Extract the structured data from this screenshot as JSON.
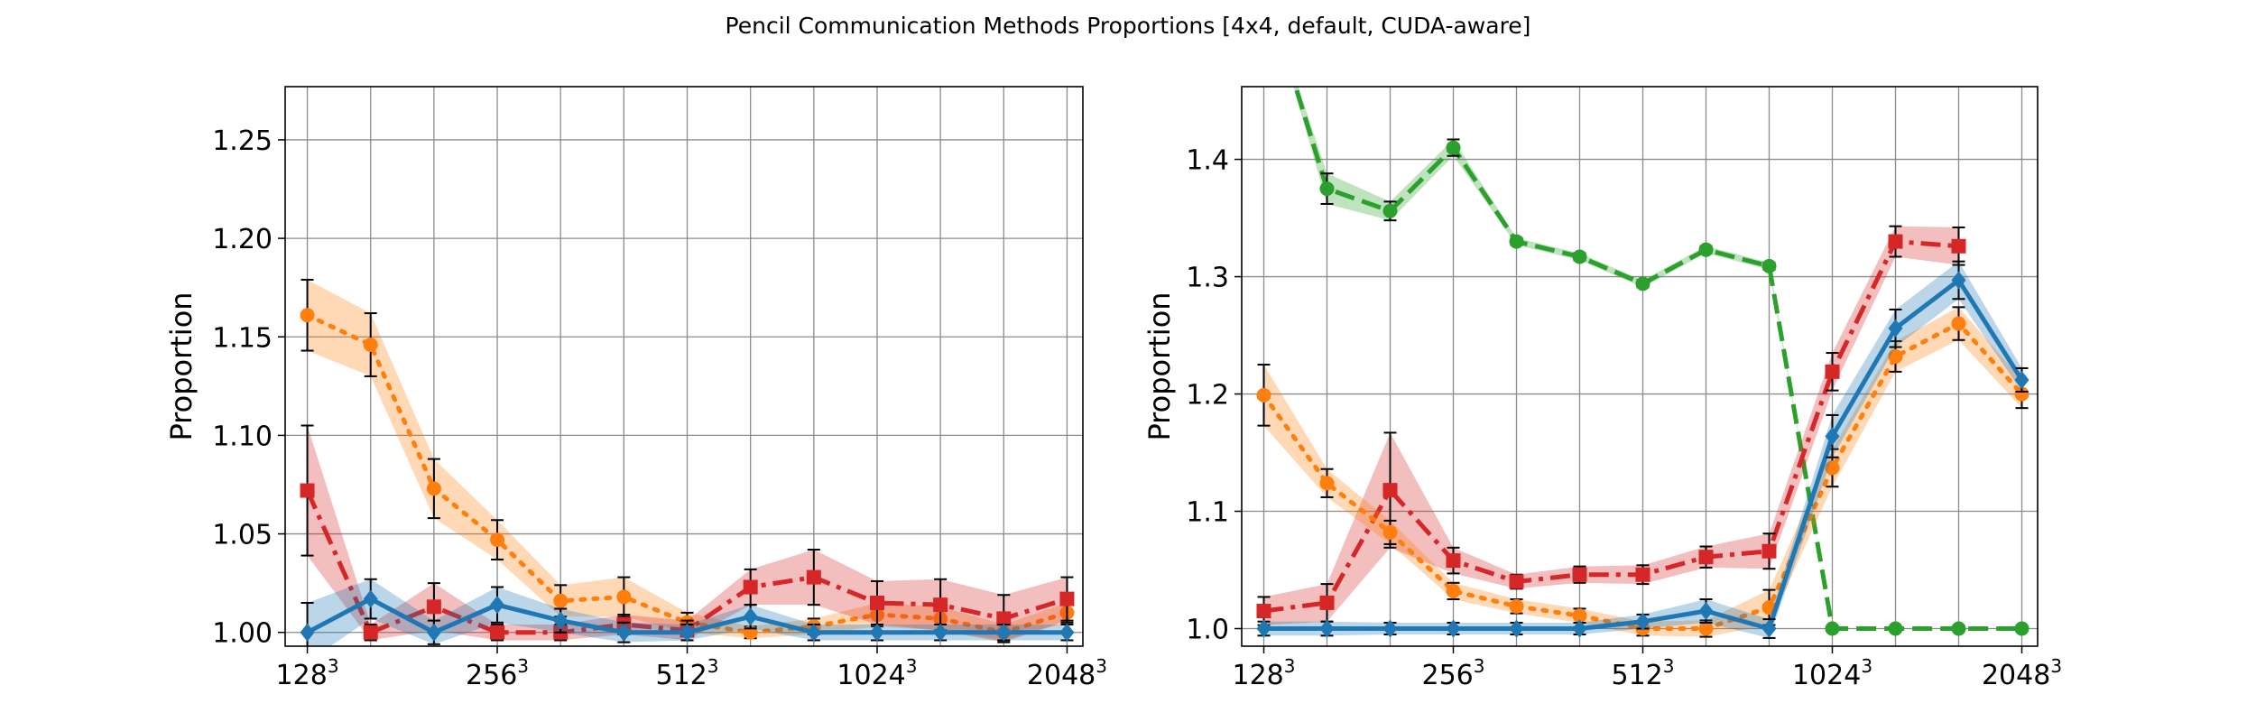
{
  "figure": {
    "title": "Pencil Communication Methods Proportions [4x4, default, CUDA-aware]"
  },
  "colors": {
    "blue": "#1f77b4",
    "orange": "#ff7f0e",
    "green": "#2ca02c",
    "red": "#d62728"
  },
  "chart_data": [
    {
      "type": "line",
      "ylabel": "Proportion",
      "ylim": [
        0.993,
        1.277
      ],
      "yticks": [
        1.0,
        1.05,
        1.1,
        1.15,
        1.2,
        1.25
      ],
      "ytick_labels": [
        "1.00",
        "1.05",
        "1.10",
        "1.15",
        "1.20",
        "1.25"
      ],
      "xlim": [
        -0.35,
        12.25
      ],
      "x": [
        0,
        1,
        2,
        3,
        4,
        5,
        6,
        7,
        8,
        9,
        10,
        11,
        12
      ],
      "xticks": [
        0,
        3,
        6,
        9,
        12
      ],
      "xtick_labels": [
        {
          "base": "128",
          "exp": "3"
        },
        {
          "base": "256",
          "exp": "3"
        },
        {
          "base": "512",
          "exp": "3"
        },
        {
          "base": "1024",
          "exp": "3"
        },
        {
          "base": "2048",
          "exp": "3"
        }
      ],
      "grid": true,
      "series": [
        {
          "color_key": "orange",
          "style": "dotted",
          "marker": "circle",
          "values": [
            1.161,
            1.146,
            1.073,
            1.047,
            1.016,
            1.018,
            1.005,
            1.0,
            1.003,
            1.009,
            1.007,
            1.0,
            1.01
          ],
          "err": [
            0.018,
            0.016,
            0.015,
            0.01,
            0.008,
            0.01,
            0.005,
            0.003,
            0.004,
            0.006,
            0.006,
            0.004,
            0.005
          ]
        },
        {
          "color_key": "red",
          "style": "dashdot",
          "marker": "square",
          "values": [
            1.072,
            1.0,
            1.013,
            1.0,
            1.0,
            1.004,
            1.001,
            1.023,
            1.028,
            1.015,
            1.014,
            1.007,
            1.017
          ],
          "err": [
            0.033,
            0.004,
            0.012,
            0.004,
            0.004,
            0.005,
            0.005,
            0.009,
            0.014,
            0.011,
            0.013,
            0.012,
            0.011
          ]
        },
        {
          "color_key": "blue",
          "style": "solid",
          "marker": "diamond",
          "values": [
            1.0,
            1.017,
            1.0,
            1.014,
            1.006,
            1.0,
            1.0,
            1.008,
            1.0,
            1.0,
            1.0,
            1.0,
            1.0
          ],
          "err": [
            0.015,
            0.01,
            0.006,
            0.009,
            0.006,
            0.005,
            0.004,
            0.006,
            0.004,
            0.004,
            0.004,
            0.004,
            0.004
          ]
        }
      ]
    },
    {
      "type": "line",
      "ylabel": "Proportion",
      "ylim": [
        0.985,
        1.462
      ],
      "yticks": [
        1.0,
        1.1,
        1.2,
        1.3,
        1.4
      ],
      "ytick_labels": [
        "1.0",
        "1.1",
        "1.2",
        "1.3",
        "1.4"
      ],
      "xlim": [
        -0.35,
        12.25
      ],
      "x": [
        0,
        1,
        2,
        3,
        4,
        5,
        6,
        7,
        8,
        9,
        10,
        11,
        12
      ],
      "xticks": [
        0,
        3,
        6,
        9,
        12
      ],
      "xtick_labels": [
        {
          "base": "128",
          "exp": "3"
        },
        {
          "base": "256",
          "exp": "3"
        },
        {
          "base": "512",
          "exp": "3"
        },
        {
          "base": "1024",
          "exp": "3"
        },
        {
          "base": "2048",
          "exp": "3"
        }
      ],
      "grid": true,
      "series": [
        {
          "color_key": "green",
          "style": "dashed",
          "marker": "circle",
          "values": [
            1.55,
            1.375,
            1.356,
            1.41,
            1.33,
            1.317,
            1.294,
            1.323,
            1.309,
            1.0,
            1.0,
            1.0,
            1.0
          ],
          "err": [
            0.0,
            0.013,
            0.008,
            0.007,
            0.003,
            0.003,
            0.003,
            0.003,
            0.003,
            0.0,
            0.0,
            0.0,
            0.0
          ]
        },
        {
          "color_key": "red",
          "style": "dashdot",
          "marker": "square",
          "values": [
            1.015,
            1.022,
            1.118,
            1.058,
            1.04,
            1.046,
            1.046,
            1.061,
            1.066,
            1.219,
            1.33,
            1.326,
            null
          ],
          "err": [
            0.012,
            0.016,
            0.049,
            0.011,
            0.006,
            0.007,
            0.008,
            0.009,
            0.015,
            0.016,
            0.013,
            0.016,
            0.0
          ]
        },
        {
          "color_key": "orange",
          "style": "dotted",
          "marker": "circle",
          "values": [
            1.199,
            1.124,
            1.082,
            1.032,
            1.019,
            1.011,
            1.0,
            1.0,
            1.018,
            1.137,
            1.232,
            1.26,
            1.2
          ],
          "err": [
            0.026,
            0.012,
            0.01,
            0.007,
            0.006,
            0.006,
            0.006,
            0.007,
            0.015,
            0.016,
            0.013,
            0.014,
            0.012
          ]
        },
        {
          "color_key": "blue",
          "style": "solid",
          "marker": "diamond",
          "values": [
            1.0,
            1.0,
            1.0,
            1.0,
            1.0,
            1.0,
            1.006,
            1.015,
            1.0,
            1.164,
            1.256,
            1.297,
            1.212
          ],
          "err": [
            0.006,
            0.006,
            0.005,
            0.005,
            0.005,
            0.005,
            0.006,
            0.01,
            0.008,
            0.018,
            0.016,
            0.016,
            0.01
          ]
        }
      ]
    }
  ]
}
